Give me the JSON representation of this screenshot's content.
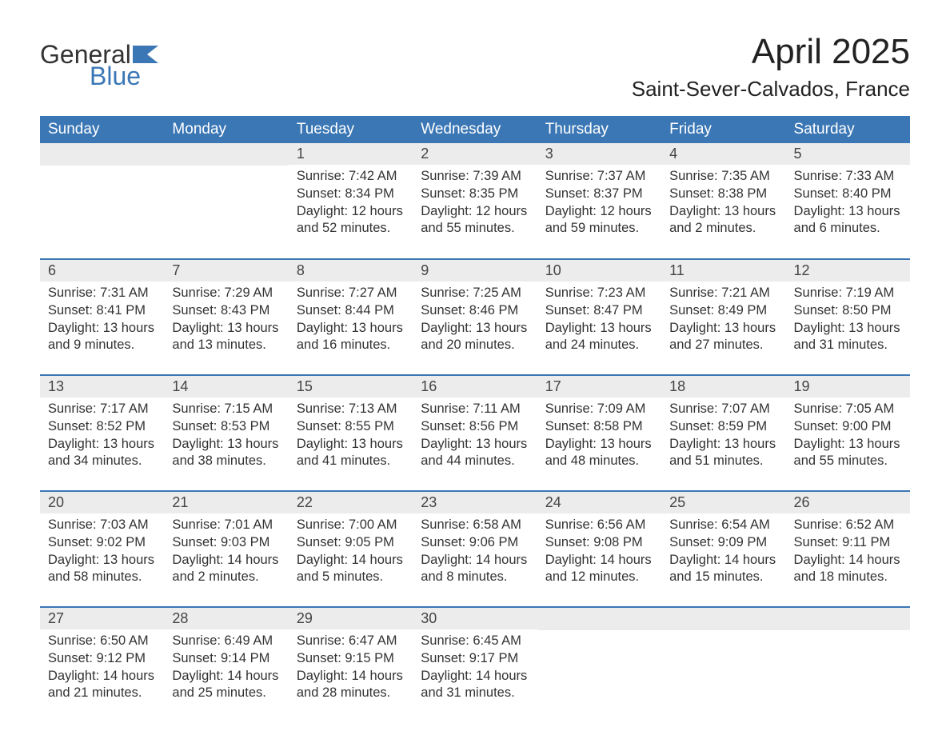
{
  "brand": {
    "word1": "General",
    "word2": "Blue",
    "flag_color": "#3b77b5"
  },
  "title": "April 2025",
  "subtitle": "Saint-Sever-Calvados, France",
  "colors": {
    "header_bg": "#3b77b5",
    "header_text": "#ffffff",
    "band_bg": "#ececec",
    "band_border": "#3b77b5",
    "text": "#333333",
    "page_bg": "#ffffff"
  },
  "day_names": [
    "Sunday",
    "Monday",
    "Tuesday",
    "Wednesday",
    "Thursday",
    "Friday",
    "Saturday"
  ],
  "weeks": [
    [
      null,
      null,
      {
        "n": "1",
        "sunrise": "Sunrise: 7:42 AM",
        "sunset": "Sunset: 8:34 PM",
        "d1": "Daylight: 12 hours",
        "d2": "and 52 minutes."
      },
      {
        "n": "2",
        "sunrise": "Sunrise: 7:39 AM",
        "sunset": "Sunset: 8:35 PM",
        "d1": "Daylight: 12 hours",
        "d2": "and 55 minutes."
      },
      {
        "n": "3",
        "sunrise": "Sunrise: 7:37 AM",
        "sunset": "Sunset: 8:37 PM",
        "d1": "Daylight: 12 hours",
        "d2": "and 59 minutes."
      },
      {
        "n": "4",
        "sunrise": "Sunrise: 7:35 AM",
        "sunset": "Sunset: 8:38 PM",
        "d1": "Daylight: 13 hours",
        "d2": "and 2 minutes."
      },
      {
        "n": "5",
        "sunrise": "Sunrise: 7:33 AM",
        "sunset": "Sunset: 8:40 PM",
        "d1": "Daylight: 13 hours",
        "d2": "and 6 minutes."
      }
    ],
    [
      {
        "n": "6",
        "sunrise": "Sunrise: 7:31 AM",
        "sunset": "Sunset: 8:41 PM",
        "d1": "Daylight: 13 hours",
        "d2": "and 9 minutes."
      },
      {
        "n": "7",
        "sunrise": "Sunrise: 7:29 AM",
        "sunset": "Sunset: 8:43 PM",
        "d1": "Daylight: 13 hours",
        "d2": "and 13 minutes."
      },
      {
        "n": "8",
        "sunrise": "Sunrise: 7:27 AM",
        "sunset": "Sunset: 8:44 PM",
        "d1": "Daylight: 13 hours",
        "d2": "and 16 minutes."
      },
      {
        "n": "9",
        "sunrise": "Sunrise: 7:25 AM",
        "sunset": "Sunset: 8:46 PM",
        "d1": "Daylight: 13 hours",
        "d2": "and 20 minutes."
      },
      {
        "n": "10",
        "sunrise": "Sunrise: 7:23 AM",
        "sunset": "Sunset: 8:47 PM",
        "d1": "Daylight: 13 hours",
        "d2": "and 24 minutes."
      },
      {
        "n": "11",
        "sunrise": "Sunrise: 7:21 AM",
        "sunset": "Sunset: 8:49 PM",
        "d1": "Daylight: 13 hours",
        "d2": "and 27 minutes."
      },
      {
        "n": "12",
        "sunrise": "Sunrise: 7:19 AM",
        "sunset": "Sunset: 8:50 PM",
        "d1": "Daylight: 13 hours",
        "d2": "and 31 minutes."
      }
    ],
    [
      {
        "n": "13",
        "sunrise": "Sunrise: 7:17 AM",
        "sunset": "Sunset: 8:52 PM",
        "d1": "Daylight: 13 hours",
        "d2": "and 34 minutes."
      },
      {
        "n": "14",
        "sunrise": "Sunrise: 7:15 AM",
        "sunset": "Sunset: 8:53 PM",
        "d1": "Daylight: 13 hours",
        "d2": "and 38 minutes."
      },
      {
        "n": "15",
        "sunrise": "Sunrise: 7:13 AM",
        "sunset": "Sunset: 8:55 PM",
        "d1": "Daylight: 13 hours",
        "d2": "and 41 minutes."
      },
      {
        "n": "16",
        "sunrise": "Sunrise: 7:11 AM",
        "sunset": "Sunset: 8:56 PM",
        "d1": "Daylight: 13 hours",
        "d2": "and 44 minutes."
      },
      {
        "n": "17",
        "sunrise": "Sunrise: 7:09 AM",
        "sunset": "Sunset: 8:58 PM",
        "d1": "Daylight: 13 hours",
        "d2": "and 48 minutes."
      },
      {
        "n": "18",
        "sunrise": "Sunrise: 7:07 AM",
        "sunset": "Sunset: 8:59 PM",
        "d1": "Daylight: 13 hours",
        "d2": "and 51 minutes."
      },
      {
        "n": "19",
        "sunrise": "Sunrise: 7:05 AM",
        "sunset": "Sunset: 9:00 PM",
        "d1": "Daylight: 13 hours",
        "d2": "and 55 minutes."
      }
    ],
    [
      {
        "n": "20",
        "sunrise": "Sunrise: 7:03 AM",
        "sunset": "Sunset: 9:02 PM",
        "d1": "Daylight: 13 hours",
        "d2": "and 58 minutes."
      },
      {
        "n": "21",
        "sunrise": "Sunrise: 7:01 AM",
        "sunset": "Sunset: 9:03 PM",
        "d1": "Daylight: 14 hours",
        "d2": "and 2 minutes."
      },
      {
        "n": "22",
        "sunrise": "Sunrise: 7:00 AM",
        "sunset": "Sunset: 9:05 PM",
        "d1": "Daylight: 14 hours",
        "d2": "and 5 minutes."
      },
      {
        "n": "23",
        "sunrise": "Sunrise: 6:58 AM",
        "sunset": "Sunset: 9:06 PM",
        "d1": "Daylight: 14 hours",
        "d2": "and 8 minutes."
      },
      {
        "n": "24",
        "sunrise": "Sunrise: 6:56 AM",
        "sunset": "Sunset: 9:08 PM",
        "d1": "Daylight: 14 hours",
        "d2": "and 12 minutes."
      },
      {
        "n": "25",
        "sunrise": "Sunrise: 6:54 AM",
        "sunset": "Sunset: 9:09 PM",
        "d1": "Daylight: 14 hours",
        "d2": "and 15 minutes."
      },
      {
        "n": "26",
        "sunrise": "Sunrise: 6:52 AM",
        "sunset": "Sunset: 9:11 PM",
        "d1": "Daylight: 14 hours",
        "d2": "and 18 minutes."
      }
    ],
    [
      {
        "n": "27",
        "sunrise": "Sunrise: 6:50 AM",
        "sunset": "Sunset: 9:12 PM",
        "d1": "Daylight: 14 hours",
        "d2": "and 21 minutes."
      },
      {
        "n": "28",
        "sunrise": "Sunrise: 6:49 AM",
        "sunset": "Sunset: 9:14 PM",
        "d1": "Daylight: 14 hours",
        "d2": "and 25 minutes."
      },
      {
        "n": "29",
        "sunrise": "Sunrise: 6:47 AM",
        "sunset": "Sunset: 9:15 PM",
        "d1": "Daylight: 14 hours",
        "d2": "and 28 minutes."
      },
      {
        "n": "30",
        "sunrise": "Sunrise: 6:45 AM",
        "sunset": "Sunset: 9:17 PM",
        "d1": "Daylight: 14 hours",
        "d2": "and 31 minutes."
      },
      null,
      null,
      null
    ]
  ]
}
